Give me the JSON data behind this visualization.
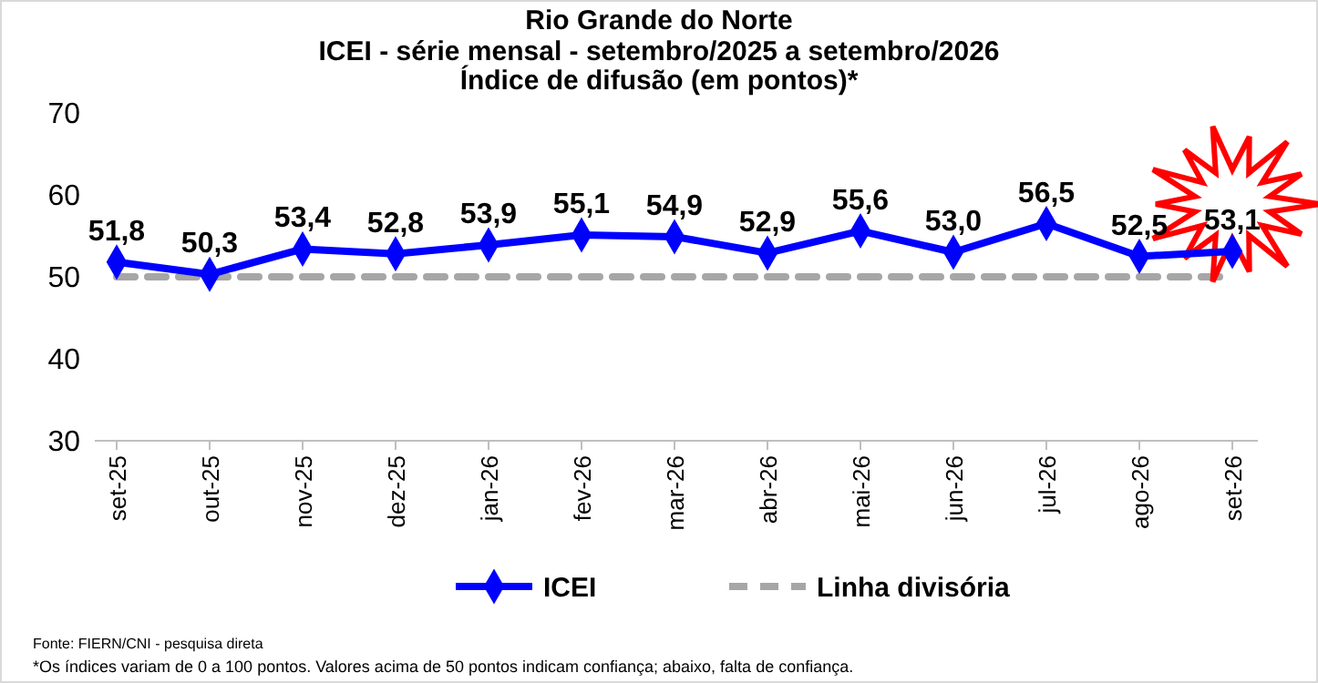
{
  "chart_data": {
    "type": "line",
    "title": "Rio Grande do Norte",
    "subtitle": "ICEI - série mensal - setembro/2025 a setembro/2026\nÍndice de difusão (em pontos)*",
    "categories": [
      "set-25",
      "out-25",
      "nov-25",
      "dez-25",
      "jan-26",
      "fev-26",
      "mar-26",
      "abr-26",
      "mai-26",
      "jun-26",
      "jul-26",
      "ago-26",
      "set-26"
    ],
    "series": [
      {
        "name": "ICEI",
        "color": "#0000ff",
        "values": [
          51.8,
          50.3,
          53.4,
          52.8,
          53.9,
          55.1,
          54.9,
          52.9,
          55.6,
          53.0,
          56.5,
          52.5,
          53.1
        ]
      }
    ],
    "value_labels": [
      "51,8",
      "50,3",
      "53,4",
      "52,8",
      "53,9",
      "55,1",
      "54,9",
      "52,9",
      "55,6",
      "53,0",
      "56,5",
      "52,5",
      "53,1"
    ],
    "ylim": [
      30,
      70
    ],
    "yticks": [
      30,
      40,
      50,
      60,
      70
    ],
    "grid": false,
    "marker": "diamond",
    "line_style": "solid",
    "legend": "bottom",
    "ref_lines": [
      {
        "axis": "y",
        "value": 50,
        "label": "Linha divisória",
        "color": "#a6a6a6",
        "line_style": "dashed"
      }
    ],
    "annotations": [
      "Fonte: FIERN/CNI - pesquisa direta",
      "*Os índices variam de 0 a 100 pontos. Valores acima de 50 pontos indicam confiança; abaixo, falta de confiança."
    ]
  }
}
